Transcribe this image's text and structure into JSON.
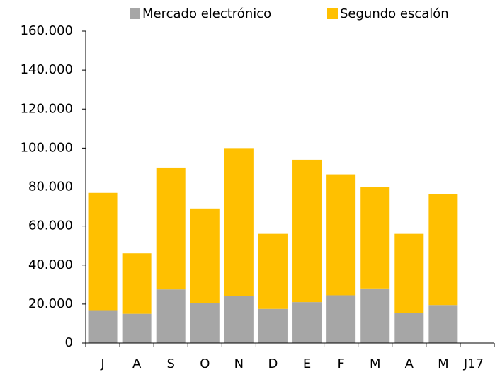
{
  "chart_data": {
    "type": "stacked_bar",
    "categories": [
      "J",
      "A",
      "S",
      "O",
      "N",
      "D",
      "E",
      "F",
      "M",
      "A",
      "M",
      "J17"
    ],
    "series": [
      {
        "name": "Mercado electrónico",
        "color": "#a6a6a6",
        "values": [
          16500,
          15000,
          27500,
          20500,
          24000,
          17500,
          21000,
          24500,
          28000,
          15500,
          19500,
          null
        ]
      },
      {
        "name": "Segundo escalón",
        "color": "#ffc000",
        "values": [
          60500,
          31000,
          62500,
          48500,
          76000,
          38500,
          73000,
          62000,
          52000,
          40500,
          57000,
          null
        ]
      }
    ],
    "ylim": [
      0,
      160000
    ],
    "yticks": [
      0,
      {
        "value": 20000,
        "label": "20.000"
      },
      {
        "value": 40000,
        "label": "40.000"
      },
      {
        "value": 60000,
        "label": "60.000"
      },
      {
        "value": 80000,
        "label": "80.000"
      },
      {
        "value": 100000,
        "label": "100.000"
      },
      {
        "value": 120000,
        "label": "120.000"
      },
      {
        "value": 140000,
        "label": "140.000"
      },
      {
        "value": 160000,
        "label": "160.000"
      }
    ],
    "legend": "top"
  }
}
